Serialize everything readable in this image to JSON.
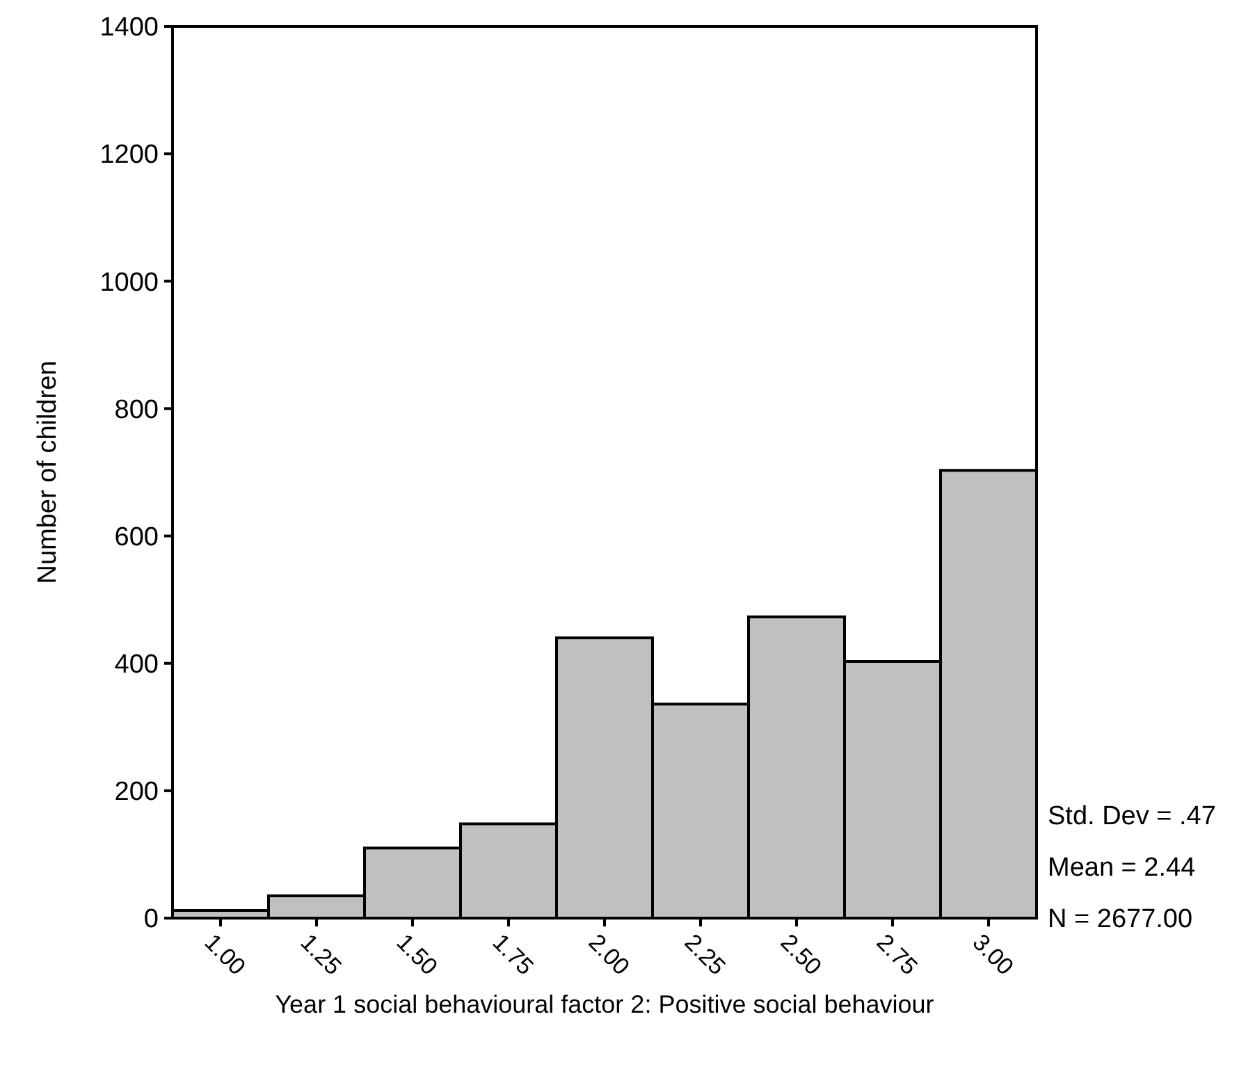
{
  "chart_data": {
    "type": "histogram",
    "xlabel": "Year 1 social behavioural factor 2: Positive social behaviour",
    "ylabel": "Number of children",
    "bins": [
      0.875,
      1.125,
      1.375,
      1.625,
      1.875,
      2.125,
      2.375,
      2.625,
      2.875,
      3.125
    ],
    "values": [
      12,
      35,
      110,
      148,
      440,
      336,
      473,
      403,
      703
    ],
    "color": "#c0c0c0",
    "xlim": [
      0.875,
      3.125
    ],
    "xticks": [
      {
        "value": 1,
        "label": "1.00"
      },
      {
        "value": 1.25,
        "label": "1.25"
      },
      {
        "value": 1.5,
        "label": "1.50"
      },
      {
        "value": 1.75,
        "label": "1.75"
      },
      {
        "value": 2,
        "label": "2.00"
      },
      {
        "value": 2.25,
        "label": "2.25"
      },
      {
        "value": 2.5,
        "label": "2.50"
      },
      {
        "value": 2.75,
        "label": "2.75"
      },
      {
        "value": 3,
        "label": "3.00"
      }
    ],
    "ylim": [
      0,
      1400
    ],
    "yticks": [
      0,
      200,
      400,
      600,
      800,
      1000,
      1200,
      1400
    ],
    "grid": false,
    "annotations": [
      "Std. Dev = .47",
      "Mean = 2.44",
      "N = 2677.00"
    ]
  }
}
